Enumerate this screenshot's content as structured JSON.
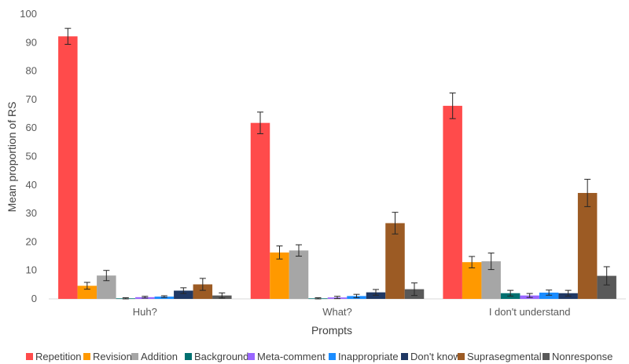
{
  "chart_data": {
    "type": "bar",
    "title": "",
    "xlabel": "Prompts",
    "ylabel": "Mean proportion of RS",
    "ylim": [
      0,
      100
    ],
    "yticks": [
      0,
      10,
      20,
      30,
      40,
      50,
      60,
      70,
      80,
      90,
      100
    ],
    "grid": false,
    "legend_position": "bottom",
    "categories": [
      "Huh?",
      "What?",
      "I don't understand"
    ],
    "series": [
      {
        "name": "Repetition",
        "color": "#ff4b4b",
        "values": [
          92.2,
          61.8,
          67.8
        ],
        "errors": [
          2.8,
          3.8,
          4.5
        ]
      },
      {
        "name": "Revision",
        "color": "#ff9900",
        "values": [
          4.6,
          16.3,
          12.9
        ],
        "errors": [
          1.2,
          2.3,
          2.0
        ]
      },
      {
        "name": "Addition",
        "color": "#a6a6a6",
        "values": [
          8.2,
          17.0,
          13.2
        ],
        "errors": [
          1.8,
          2.0,
          2.9
        ]
      },
      {
        "name": "Background",
        "color": "#007070",
        "values": [
          0.2,
          0.2,
          2.0
        ],
        "errors": [
          0.2,
          0.2,
          1.0
        ]
      },
      {
        "name": "Meta-comment",
        "color": "#9966ff",
        "values": [
          0.6,
          0.5,
          1.2
        ],
        "errors": [
          0.3,
          0.4,
          0.7
        ]
      },
      {
        "name": "Inappropriate",
        "color": "#1a8cff",
        "values": [
          0.8,
          1.0,
          2.2
        ],
        "errors": [
          0.3,
          0.6,
          0.9
        ]
      },
      {
        "name": "Don't know",
        "color": "#1f3864",
        "values": [
          2.9,
          2.3,
          2.0
        ],
        "errors": [
          1.0,
          1.0,
          1.0
        ]
      },
      {
        "name": "Suprasegmental",
        "color": "#9c5b24",
        "values": [
          5.1,
          26.6,
          37.2
        ],
        "errors": [
          2.1,
          3.8,
          4.8
        ]
      },
      {
        "name": "Nonresponse",
        "color": "#595959",
        "values": [
          1.2,
          3.4,
          8.1
        ],
        "errors": [
          0.9,
          2.2,
          3.2
        ]
      }
    ]
  }
}
